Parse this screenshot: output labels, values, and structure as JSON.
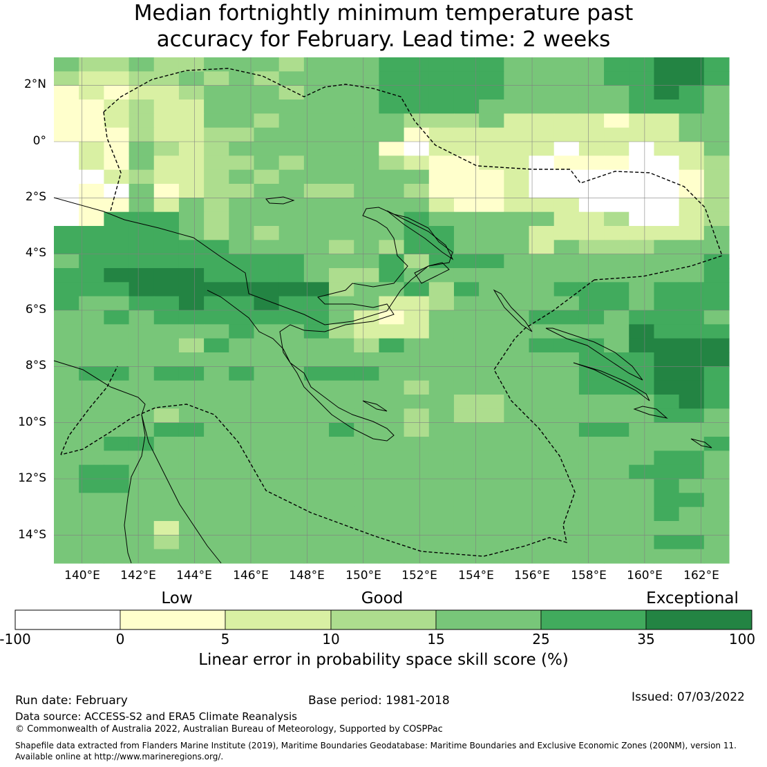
{
  "title": {
    "line1": "Median fortnightly minimum temperature past",
    "line2": "accuracy for February. Lead time: 2 weeks"
  },
  "map": {
    "lat_labels": [
      "2°N",
      "0°",
      "2°S",
      "4°S",
      "6°S",
      "8°S",
      "10°S",
      "12°S",
      "14°S"
    ],
    "lon_labels": [
      "140°E",
      "142°E",
      "144°E",
      "146°E",
      "148°E",
      "150°E",
      "152°E",
      "154°E",
      "156°E",
      "158°E",
      "160°E",
      "162°E"
    ],
    "lon_range": [
      139,
      163
    ],
    "lat_range": [
      -15,
      3
    ],
    "grid": true
  },
  "legend": {
    "categories": [
      "Low",
      "Good",
      "Exceptional"
    ],
    "ticks": [
      "-100",
      "0",
      "5",
      "10",
      "15",
      "25",
      "35",
      "100"
    ],
    "bins": [
      {
        "range": "-100 to 0",
        "color": "#ffffff"
      },
      {
        "range": "0 to 5",
        "color": "#ffffcc"
      },
      {
        "range": "5 to 10",
        "color": "#d9f0a3"
      },
      {
        "range": "10 to 15",
        "color": "#addd8e"
      },
      {
        "range": "15 to 25",
        "color": "#78c679"
      },
      {
        "range": "25 to 35",
        "color": "#41ab5d"
      },
      {
        "range": "35 to 100",
        "color": "#238443"
      }
    ],
    "label": "Linear error in probability space skill score (%)"
  },
  "footer": {
    "run_date": "Run date: February",
    "base_period": "Base period: 1981-2018",
    "issued": "Issued: 07/03/2022",
    "data_source": "Data source: ACCESS-S2 and ERA5 Climate Reanalysis",
    "copyright": "© Commonwealth of Australia 2022, Australian Bureau of Meteorology, Supported by COSPPac",
    "shapefile_line1": "Shapefile data extracted from Flanders Marine Institute (2019), Maritime Boundaries Geodatabase: Maritime Boundaries and Exclusive Economic Zones (200NM), version 11.",
    "shapefile_line2": "Available online at http://www.marineregions.org/."
  }
}
